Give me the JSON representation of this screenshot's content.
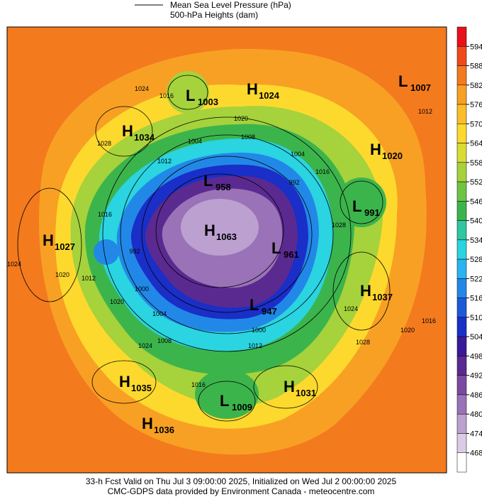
{
  "header": {
    "legend": [
      "Mean Sea Level Pressure (hPa)",
      "500-hPa Heights (dam)"
    ]
  },
  "colorbar": {
    "ticks": [
      594,
      588,
      582,
      576,
      570,
      564,
      558,
      552,
      546,
      540,
      534,
      528,
      522,
      516,
      510,
      504,
      498,
      492,
      486,
      480,
      474,
      468
    ],
    "colors": [
      "#e8101a",
      "#f04a1c",
      "#f47a1e",
      "#f8a024",
      "#fbbe2a",
      "#fdd92e",
      "#d9dc34",
      "#a6d23c",
      "#6fc444",
      "#3cb44c",
      "#2fc6a0",
      "#2ad4e0",
      "#28b4f0",
      "#2288e8",
      "#1a5ad8",
      "#1a2ec8",
      "#3a1a98",
      "#5a2a90",
      "#7a4aa0",
      "#9a72b8",
      "#bba0d0",
      "#dccbe6",
      "#ffffff"
    ]
  },
  "centers": [
    {
      "kind": "L",
      "value": 1003
    },
    {
      "kind": "H",
      "value": 1024
    },
    {
      "kind": "L",
      "value": 1007
    },
    {
      "kind": "H",
      "value": 1034
    },
    {
      "kind": "H",
      "value": 1020
    },
    {
      "kind": "L",
      "value": 958
    },
    {
      "kind": "L",
      "value": 991
    },
    {
      "kind": "H",
      "value": 1063
    },
    {
      "kind": "H",
      "value": 1027
    },
    {
      "kind": "L",
      "value": 961
    },
    {
      "kind": "H",
      "value": 1037
    },
    {
      "kind": "L",
      "value": 947
    },
    {
      "kind": "H",
      "value": 1035
    },
    {
      "kind": "H",
      "value": 1031
    },
    {
      "kind": "L",
      "value": 1009
    },
    {
      "kind": "H",
      "value": 1036
    }
  ],
  "contour_labels": [
    1024,
    1016,
    1020,
    1028,
    1008,
    1004,
    1012,
    1004,
    992,
    1016,
    1028,
    1016,
    1024,
    1020,
    1012,
    992,
    1000,
    1004,
    1020,
    1024,
    1008,
    1012,
    1000,
    1016,
    1028,
    1020,
    1016,
    1012,
    1024
  ],
  "footer": [
    "33-h Fcst Valid on Thu Jul  3 09:00:00 2025, Initialized on Wed Jul  2 00:00:00 2025",
    "CMC-GDPS data provided by Environment Canada - meteocentre.com"
  ]
}
